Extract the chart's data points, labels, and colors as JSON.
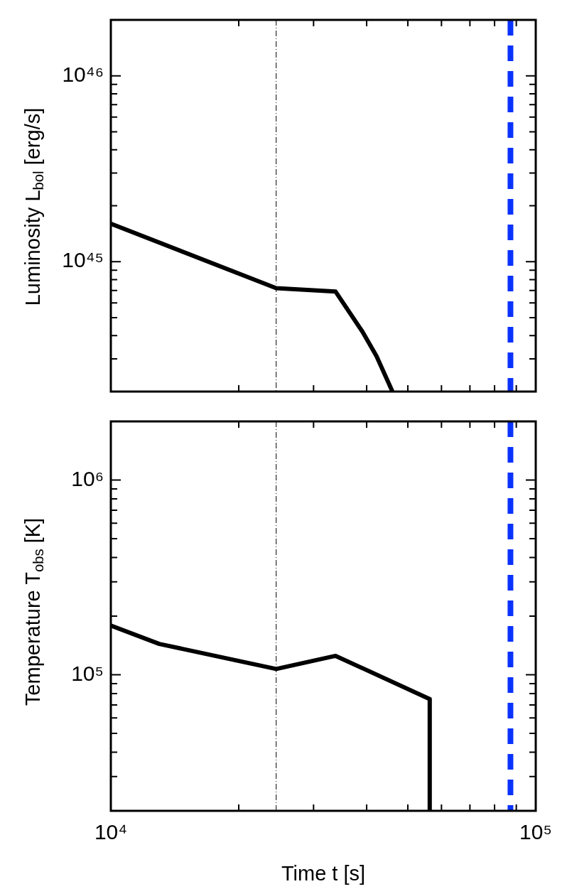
{
  "chart_data": [
    {
      "type": "line",
      "ylabel": "Luminosity L$_{bol}$ [erg/s]",
      "log": "xy",
      "legend": false,
      "marker": "none",
      "tick_labels": "y",
      "xlim": [
        10000,
        100000
      ],
      "xticks": [
        {
          "value": 10000,
          "label": null
        },
        {
          "value": 20000,
          "label": null
        },
        {
          "value": 30000,
          "label": null
        },
        {
          "value": 40000,
          "label": null
        },
        {
          "value": 50000,
          "label": null
        },
        {
          "value": 60000,
          "label": null
        },
        {
          "value": 70000,
          "label": null
        },
        {
          "value": 80000,
          "label": null
        },
        {
          "value": 90000,
          "label": null
        },
        {
          "value": 100000,
          "label": null
        }
      ],
      "ylim": [
        2e+44,
        2e+46
      ],
      "yticks": [
        {
          "value": 2e+44,
          "label": null
        },
        {
          "value": 3e+44,
          "label": null
        },
        {
          "value": 4e+44,
          "label": null
        },
        {
          "value": 5e+44,
          "label": null
        },
        {
          "value": 6e+44,
          "label": null
        },
        {
          "value": 7e+44,
          "label": null
        },
        {
          "value": 8e+44,
          "label": null
        },
        {
          "value": 9e+44,
          "label": null
        },
        {
          "value": 1e+45,
          "label": "10⁴⁵"
        },
        {
          "value": 2e+45,
          "label": null
        },
        {
          "value": 3e+45,
          "label": null
        },
        {
          "value": 4e+45,
          "label": null
        },
        {
          "value": 5e+45,
          "label": null
        },
        {
          "value": 6e+45,
          "label": null
        },
        {
          "value": 7e+45,
          "label": null
        },
        {
          "value": 8e+45,
          "label": null
        },
        {
          "value": 9e+45,
          "label": null
        },
        {
          "value": 1e+46,
          "label": "10⁴⁶"
        },
        {
          "value": 2e+46,
          "label": null
        }
      ],
      "ref_lines": [
        {
          "axis": "x",
          "value": 24500,
          "color": "#000000",
          "line_style": "dashdot"
        },
        {
          "axis": "x",
          "value": 87200,
          "color": "#0a32ff",
          "line_style": "dashed"
        }
      ],
      "series": [
        {
          "color": "#000000",
          "x": [
            10000,
            24500,
            33800,
            39100,
            42200,
            46000
          ],
          "values": [
            1.6e+45,
            7.2e+44,
            6.9e+44,
            4.2e+44,
            3.1e+44,
            2e+44
          ]
        }
      ]
    },
    {
      "type": "line",
      "xlabel": "Time t [s]",
      "ylabel": "Temperature T$_{obs}$ [K]",
      "log": "xy",
      "legend": false,
      "marker": "none",
      "xlim": [
        10000,
        100000
      ],
      "xticks": [
        {
          "value": 10000,
          "label": "10⁴"
        },
        {
          "value": 20000,
          "label": null
        },
        {
          "value": 30000,
          "label": null
        },
        {
          "value": 40000,
          "label": null
        },
        {
          "value": 50000,
          "label": null
        },
        {
          "value": 60000,
          "label": null
        },
        {
          "value": 70000,
          "label": null
        },
        {
          "value": 80000,
          "label": null
        },
        {
          "value": 90000,
          "label": null
        },
        {
          "value": 100000,
          "label": "10⁵"
        }
      ],
      "ylim": [
        20000,
        2000000
      ],
      "yticks": [
        {
          "value": 20000,
          "label": null
        },
        {
          "value": 30000,
          "label": null
        },
        {
          "value": 40000,
          "label": null
        },
        {
          "value": 50000,
          "label": null
        },
        {
          "value": 60000,
          "label": null
        },
        {
          "value": 70000,
          "label": null
        },
        {
          "value": 80000,
          "label": null
        },
        {
          "value": 90000,
          "label": null
        },
        {
          "value": 100000,
          "label": "10⁵"
        },
        {
          "value": 200000,
          "label": null
        },
        {
          "value": 300000,
          "label": null
        },
        {
          "value": 400000,
          "label": null
        },
        {
          "value": 500000,
          "label": null
        },
        {
          "value": 600000,
          "label": null
        },
        {
          "value": 700000,
          "label": null
        },
        {
          "value": 800000,
          "label": null
        },
        {
          "value": 900000,
          "label": null
        },
        {
          "value": 1000000,
          "label": "10⁶"
        },
        {
          "value": 2000000,
          "label": null
        }
      ],
      "ref_lines": [
        {
          "axis": "x",
          "value": 24500,
          "color": "#000000",
          "line_style": "dashdot"
        },
        {
          "axis": "x",
          "value": 87200,
          "color": "#0a32ff",
          "line_style": "dashed"
        }
      ],
      "series": [
        {
          "color": "#000000",
          "x": [
            10000,
            13000,
            24500,
            33800,
            56300,
            56300
          ],
          "values": [
            179000,
            144000,
            107000,
            125000,
            75000,
            20000
          ]
        }
      ]
    }
  ]
}
